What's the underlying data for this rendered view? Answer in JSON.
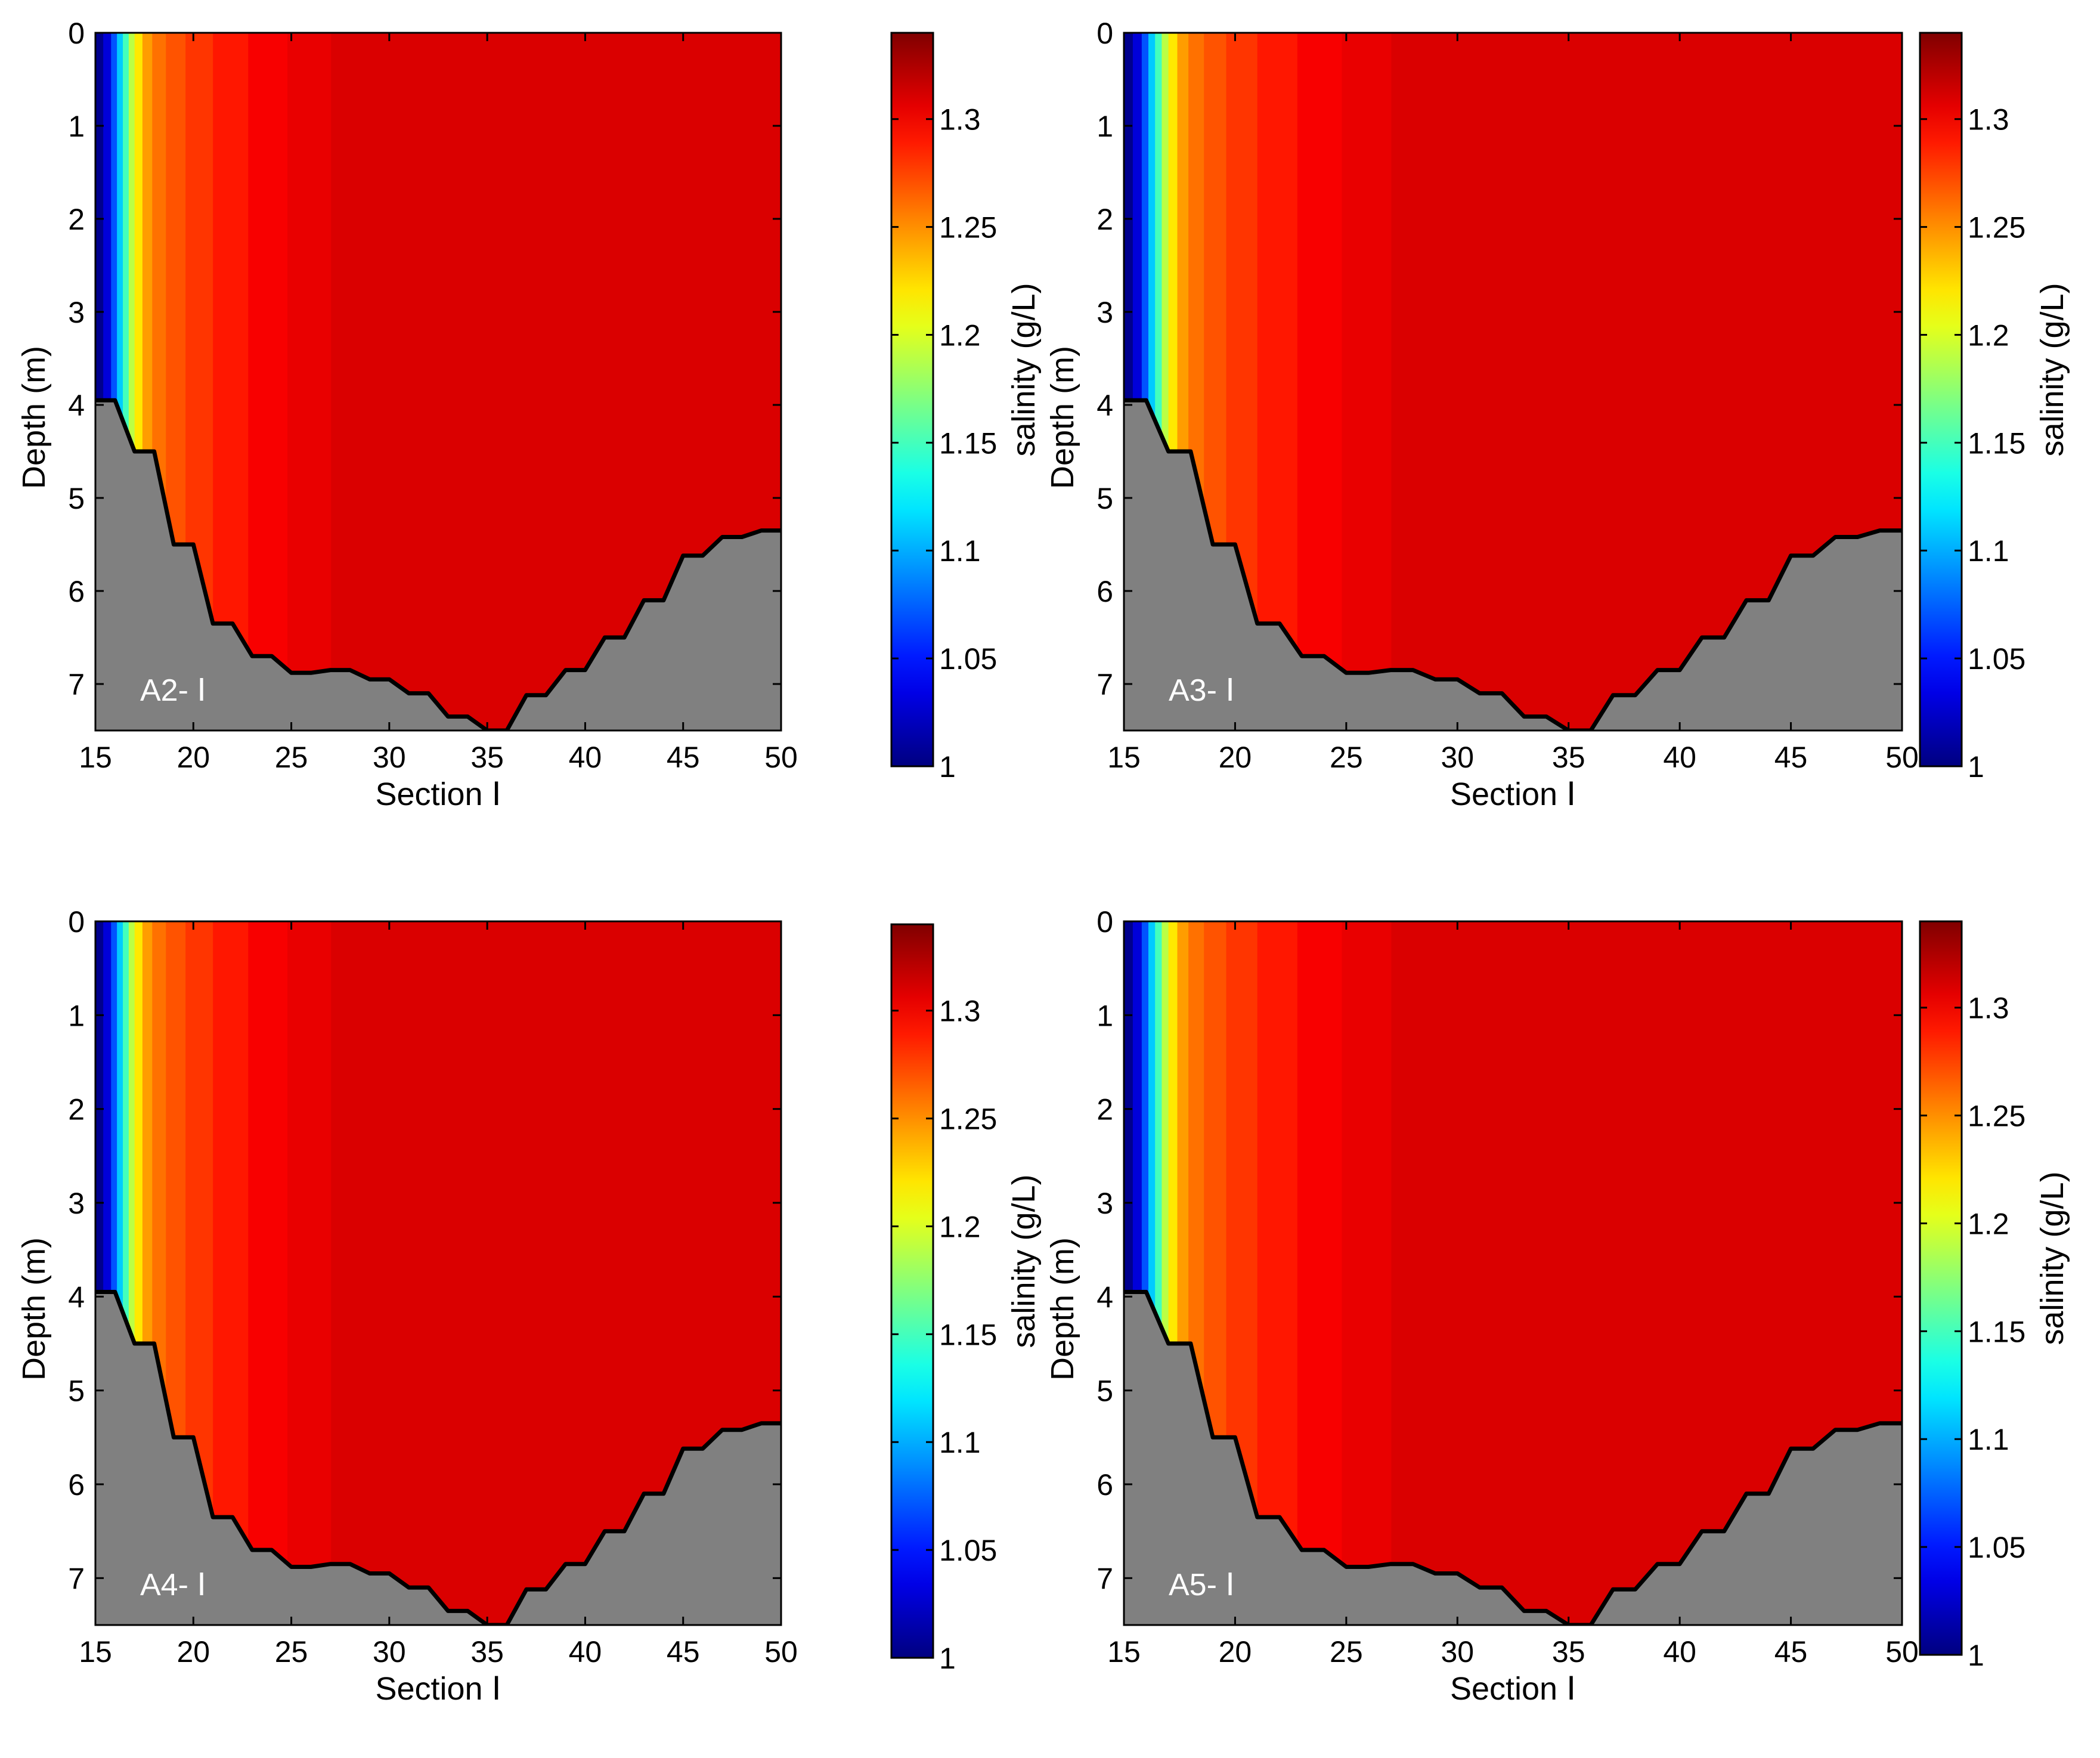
{
  "chart_data": [
    {
      "type": "heatmap",
      "panel_label": "A2- Ⅰ",
      "xlabel": "Section Ⅰ",
      "ylabel": "Depth (m)",
      "colorbar_label": "salinity (g/L)",
      "xlim": [
        15,
        50
      ],
      "ylim": [
        0,
        7.5
      ],
      "xticks": [
        "15",
        "20",
        "25",
        "30",
        "35",
        "40",
        "45",
        "50"
      ],
      "yticks": [
        "0",
        "1",
        "2",
        "3",
        "4",
        "5",
        "6",
        "7"
      ],
      "clim": [
        1,
        1.34
      ],
      "cticks": [
        "1",
        "1.05",
        "1.1",
        "1.15",
        "1.2",
        "1.25",
        "1.3"
      ],
      "bottom_profile": {
        "x": [
          15,
          16,
          17,
          18,
          19,
          20,
          21,
          22,
          23,
          24,
          25,
          26,
          27,
          28,
          29,
          30,
          31,
          32,
          33,
          34,
          35,
          36,
          37,
          38,
          39,
          40,
          41,
          42,
          43,
          44,
          45,
          46,
          47,
          48,
          49,
          50
        ],
        "depth": [
          3.95,
          3.95,
          4.5,
          4.5,
          5.5,
          5.5,
          6.35,
          6.35,
          6.7,
          6.7,
          6.88,
          6.88,
          6.85,
          6.85,
          6.95,
          6.95,
          7.1,
          7.1,
          7.35,
          7.35,
          7.5,
          7.5,
          7.12,
          7.12,
          6.85,
          6.85,
          6.5,
          6.5,
          6.1,
          6.1,
          5.62,
          5.62,
          5.42,
          5.42,
          5.35,
          5.35
        ]
      }
    },
    {
      "type": "heatmap",
      "panel_label": "A3- Ⅰ",
      "xlabel": "Section Ⅰ",
      "ylabel": "Depth (m)",
      "colorbar_label": "salinity (g/L)",
      "xlim": [
        15,
        50
      ],
      "ylim": [
        0,
        7.5
      ],
      "xticks": [
        "15",
        "20",
        "25",
        "30",
        "35",
        "40",
        "45",
        "50"
      ],
      "yticks": [
        "0",
        "1",
        "2",
        "3",
        "4",
        "5",
        "6",
        "7"
      ],
      "clim": [
        1,
        1.34
      ],
      "cticks": [
        "1",
        "1.05",
        "1.1",
        "1.15",
        "1.2",
        "1.25",
        "1.3"
      ],
      "bottom_profile": {
        "x": [
          15,
          16,
          17,
          18,
          19,
          20,
          21,
          22,
          23,
          24,
          25,
          26,
          27,
          28,
          29,
          30,
          31,
          32,
          33,
          34,
          35,
          36,
          37,
          38,
          39,
          40,
          41,
          42,
          43,
          44,
          45,
          46,
          47,
          48,
          49,
          50
        ],
        "depth": [
          3.95,
          3.95,
          4.5,
          4.5,
          5.5,
          5.5,
          6.35,
          6.35,
          6.7,
          6.7,
          6.88,
          6.88,
          6.85,
          6.85,
          6.95,
          6.95,
          7.1,
          7.1,
          7.35,
          7.35,
          7.5,
          7.5,
          7.12,
          7.12,
          6.85,
          6.85,
          6.5,
          6.5,
          6.1,
          6.1,
          5.62,
          5.62,
          5.42,
          5.42,
          5.35,
          5.35
        ]
      }
    },
    {
      "type": "heatmap",
      "panel_label": "A4- Ⅰ",
      "xlabel": "Section Ⅰ",
      "ylabel": "Depth (m)",
      "colorbar_label": "salinity (g/L)",
      "xlim": [
        15,
        50
      ],
      "ylim": [
        0,
        7.5
      ],
      "xticks": [
        "15",
        "20",
        "25",
        "30",
        "35",
        "40",
        "45",
        "50"
      ],
      "yticks": [
        "0",
        "1",
        "2",
        "3",
        "4",
        "5",
        "6",
        "7"
      ],
      "clim": [
        1,
        1.34
      ],
      "cticks": [
        "1",
        "1.05",
        "1.1",
        "1.15",
        "1.2",
        "1.25",
        "1.3"
      ],
      "bottom_profile": {
        "x": [
          15,
          16,
          17,
          18,
          19,
          20,
          21,
          22,
          23,
          24,
          25,
          26,
          27,
          28,
          29,
          30,
          31,
          32,
          33,
          34,
          35,
          36,
          37,
          38,
          39,
          40,
          41,
          42,
          43,
          44,
          45,
          46,
          47,
          48,
          49,
          50
        ],
        "depth": [
          3.95,
          3.95,
          4.5,
          4.5,
          5.5,
          5.5,
          6.35,
          6.35,
          6.7,
          6.7,
          6.88,
          6.88,
          6.85,
          6.85,
          6.95,
          6.95,
          7.1,
          7.1,
          7.35,
          7.35,
          7.5,
          7.5,
          7.12,
          7.12,
          6.85,
          6.85,
          6.5,
          6.5,
          6.1,
          6.1,
          5.62,
          5.62,
          5.42,
          5.42,
          5.35,
          5.35
        ]
      }
    },
    {
      "type": "heatmap",
      "panel_label": "A5- Ⅰ",
      "xlabel": "Section Ⅰ",
      "ylabel": "Depth (m)",
      "colorbar_label": "salinity (g/L)",
      "xlim": [
        15,
        50
      ],
      "ylim": [
        0,
        7.5
      ],
      "xticks": [
        "15",
        "20",
        "25",
        "30",
        "35",
        "40",
        "45",
        "50"
      ],
      "yticks": [
        "0",
        "1",
        "2",
        "3",
        "4",
        "5",
        "6",
        "7"
      ],
      "clim": [
        1,
        1.34
      ],
      "cticks": [
        "1",
        "1.05",
        "1.1",
        "1.15",
        "1.2",
        "1.25",
        "1.3"
      ],
      "bottom_profile": {
        "x": [
          15,
          16,
          17,
          18,
          19,
          20,
          21,
          22,
          23,
          24,
          25,
          26,
          27,
          28,
          29,
          30,
          31,
          32,
          33,
          34,
          35,
          36,
          37,
          38,
          39,
          40,
          41,
          42,
          43,
          44,
          45,
          46,
          47,
          48,
          49,
          50
        ],
        "depth": [
          3.95,
          3.95,
          4.5,
          4.5,
          5.5,
          5.5,
          6.35,
          6.35,
          6.7,
          6.7,
          6.88,
          6.88,
          6.85,
          6.85,
          6.95,
          6.95,
          7.1,
          7.1,
          7.35,
          7.35,
          7.5,
          7.5,
          7.12,
          7.12,
          6.85,
          6.85,
          6.5,
          6.5,
          6.1,
          6.1,
          5.62,
          5.62,
          5.42,
          5.42,
          5.35,
          5.35
        ]
      }
    }
  ]
}
